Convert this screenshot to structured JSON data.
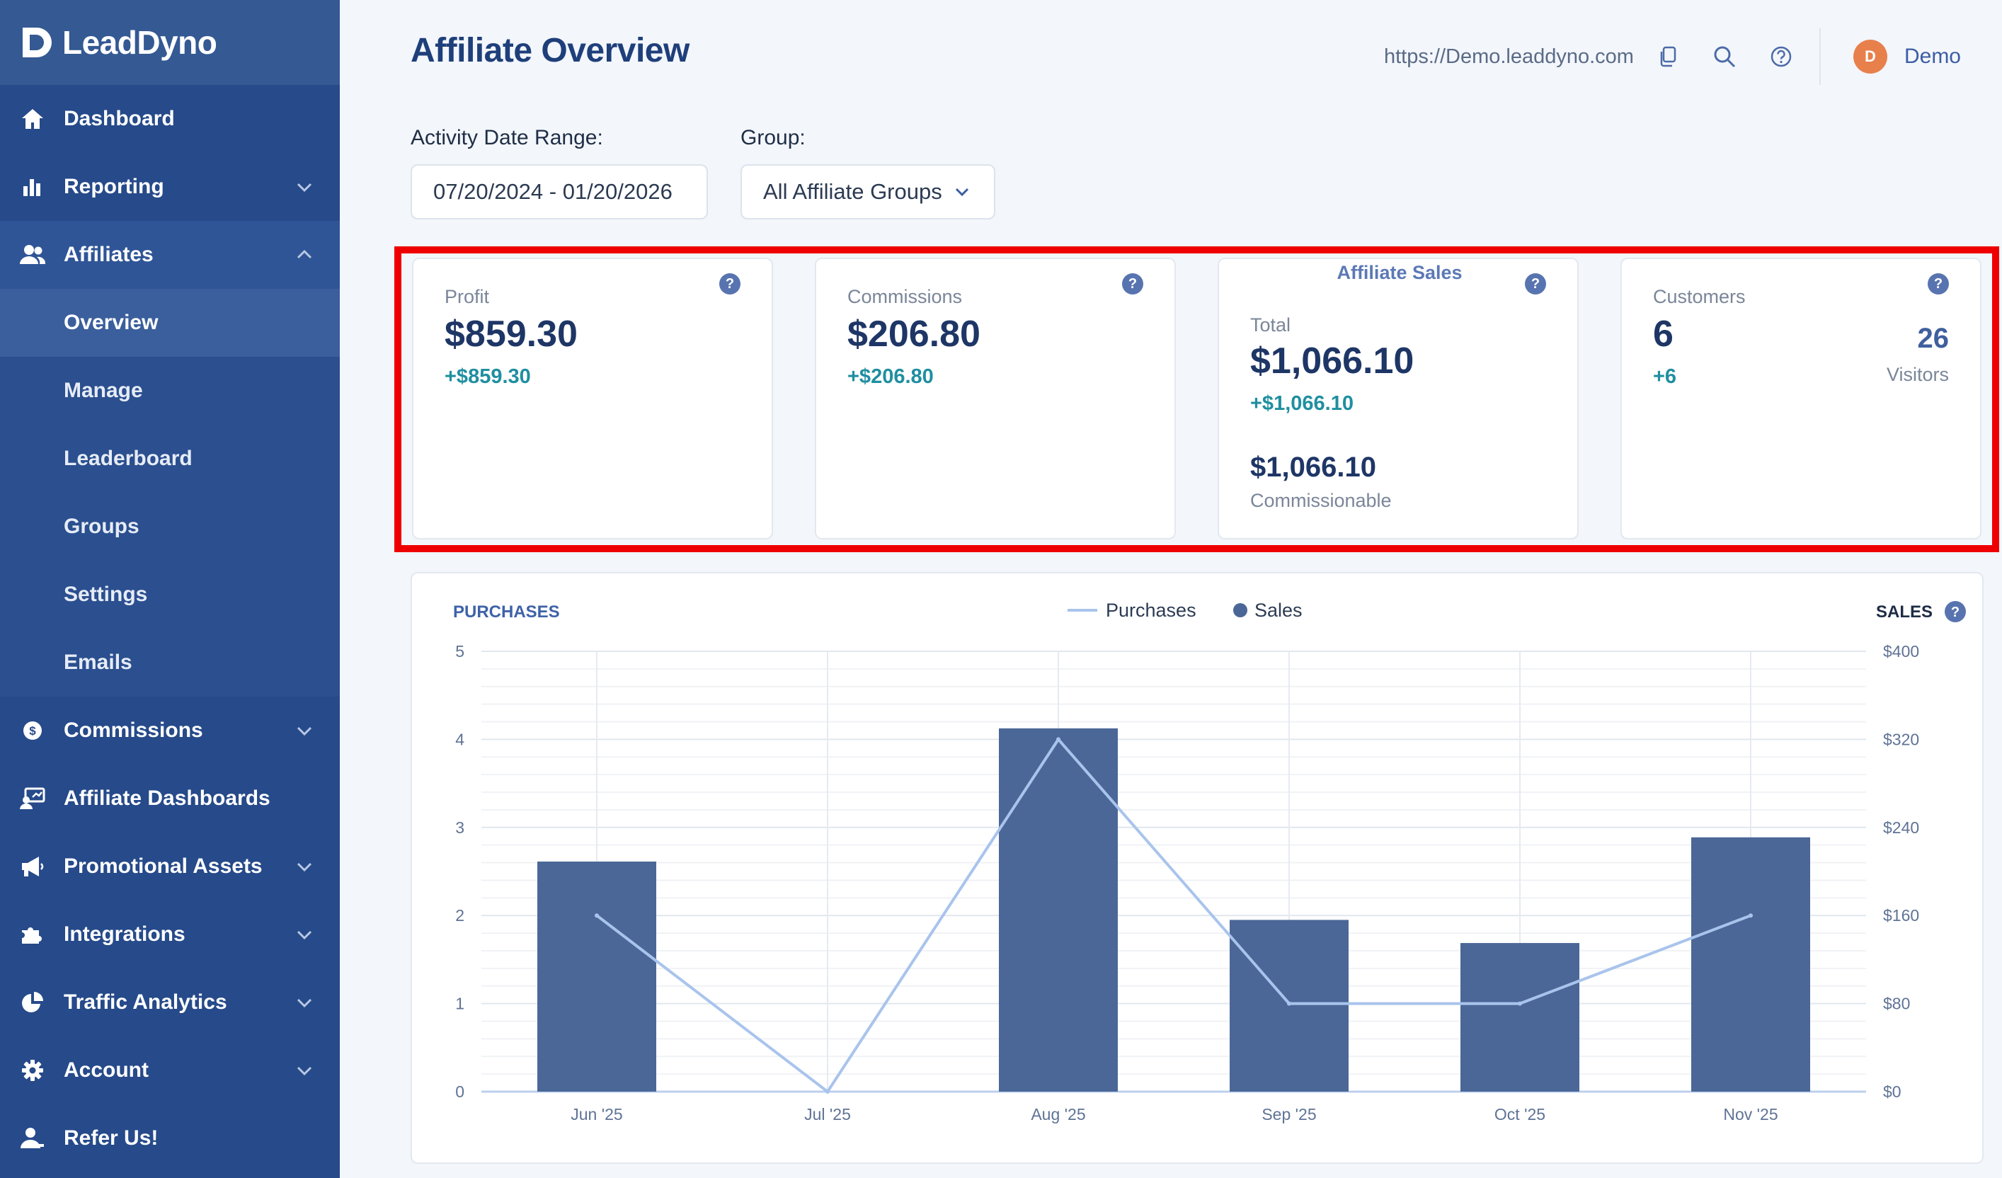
{
  "brand": {
    "name": "LeadDyno"
  },
  "sidebar": {
    "items": [
      {
        "label": "Dashboard",
        "icon": "home-icon",
        "chevron": ""
      },
      {
        "label": "Reporting",
        "icon": "bar-chart-icon",
        "chevron": "down"
      },
      {
        "label": "Affiliates",
        "icon": "users-icon",
        "chevron": "up"
      },
      {
        "label": "Commissions",
        "icon": "dollar-coin-icon",
        "chevron": "down"
      },
      {
        "label": "Affiliate Dashboards",
        "icon": "dashboard-screen-icon",
        "chevron": ""
      },
      {
        "label": "Promotional Assets",
        "icon": "megaphone-icon",
        "chevron": "down"
      },
      {
        "label": "Integrations",
        "icon": "puzzle-icon",
        "chevron": "down"
      },
      {
        "label": "Traffic Analytics",
        "icon": "pie-chart-icon",
        "chevron": "down"
      },
      {
        "label": "Account",
        "icon": "gear-icon",
        "chevron": "down"
      },
      {
        "label": "Refer Us!",
        "icon": "user-share-icon",
        "chevron": ""
      }
    ],
    "affiliates_sub": [
      {
        "label": "Overview",
        "current": true
      },
      {
        "label": "Manage"
      },
      {
        "label": "Leaderboard"
      },
      {
        "label": "Groups"
      },
      {
        "label": "Settings"
      },
      {
        "label": "Emails"
      }
    ]
  },
  "header": {
    "title": "Affiliate Overview",
    "url": "https://Demo.leaddyno.com",
    "user_initial": "D",
    "user_name": "Demo"
  },
  "filters": {
    "date_label": "Activity Date Range:",
    "date_value": "07/20/2024 - 01/20/2026",
    "group_label": "Group:",
    "group_value": "All Affiliate Groups"
  },
  "cards": {
    "profit": {
      "label": "Profit",
      "value": "$859.30",
      "delta": "+$859.30",
      "help": "?"
    },
    "commissions": {
      "label": "Commissions",
      "value": "$206.80",
      "delta": "+$206.80",
      "help": "?"
    },
    "sales": {
      "title": "Affiliate Sales",
      "total_label": "Total",
      "total": "$1,066.10",
      "delta": "+$1,066.10",
      "commissionable": "$1,066.10",
      "commissionable_label": "Commissionable",
      "help": "?"
    },
    "customers": {
      "label": "Customers",
      "value": "6",
      "delta": "+6",
      "visitors": "26",
      "visitors_label": "Visitors",
      "help": "?"
    }
  },
  "chart_data": {
    "type": "bar",
    "left_axis_title": "PURCHASES",
    "right_axis_title": "SALES",
    "help": "?",
    "categories": [
      "Jun '25",
      "Jul '25",
      "Aug '25",
      "Sep '25",
      "Oct '25",
      "Nov '25"
    ],
    "series": [
      {
        "name": "Sales",
        "kind": "bar",
        "axis": "right",
        "color": "#4b6797",
        "values": [
          209,
          0,
          330,
          156,
          135,
          231
        ]
      },
      {
        "name": "Purchases",
        "kind": "line",
        "axis": "left",
        "color": "#a9c4ec",
        "values": [
          2,
          0,
          4,
          1,
          1,
          2
        ]
      }
    ],
    "left_ylim": [
      0,
      5
    ],
    "left_ticks": [
      "0",
      "1",
      "2",
      "3",
      "4",
      "5"
    ],
    "right_ylim": [
      0,
      400
    ],
    "right_ticks": [
      "$0",
      "$80",
      "$160",
      "$240",
      "$320",
      "$400"
    ],
    "legend_placement": "top-center",
    "grid": true
  },
  "colors": {
    "sidebar": "#264a8a",
    "accent": "#1e3f7a",
    "delta": "#1f8fa0",
    "highlight": "#ee0000"
  }
}
